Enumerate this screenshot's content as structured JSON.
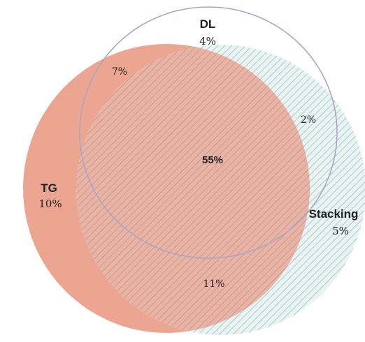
{
  "sets": {
    "tg": {
      "name": "TG",
      "pct": "10%",
      "fill": "#e9a38f",
      "outline": "#e9a38f"
    },
    "dl": {
      "name": "DL",
      "pct": "4%",
      "fill": "none",
      "outline": "#b5b2cc"
    },
    "stacking": {
      "name": "Stacking",
      "pct": "5%",
      "fill": "#e6f0ef",
      "outline": "#cfe0df"
    }
  },
  "regions": {
    "tg_dl": "7%",
    "dl_stacking": "2%",
    "tg_stacking": "11%",
    "all_three": "55%"
  },
  "colors": {
    "hatch_on_tg": "#c99c8f",
    "hatch_on_stacking": "#a9c9c8",
    "dl_outline": "#a9a6c4"
  }
}
